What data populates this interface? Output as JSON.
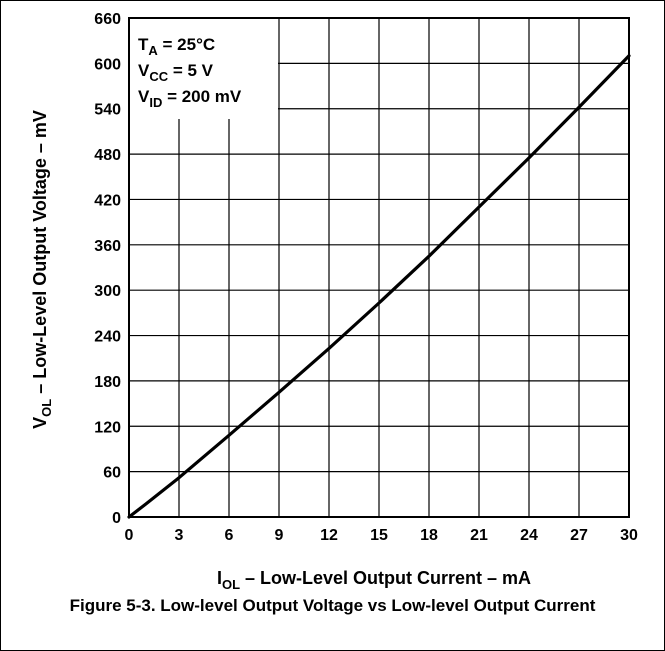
{
  "chart_data": {
    "type": "line",
    "xlabel": {
      "prefix": "I",
      "sub": "OL",
      "rest": " – Low-Level Output Current – mA"
    },
    "ylabel": {
      "prefix": "V",
      "sub": "OL",
      "rest": " – Low-Level Output Voltage – mV"
    },
    "xlim": [
      0,
      30
    ],
    "ylim": [
      0,
      660
    ],
    "x_ticks": [
      0,
      3,
      6,
      9,
      12,
      15,
      18,
      21,
      24,
      27,
      30
    ],
    "y_ticks": [
      0,
      60,
      120,
      180,
      240,
      300,
      360,
      420,
      480,
      540,
      600,
      660
    ],
    "grid": true,
    "conditions": [
      {
        "main": "T",
        "sub": "A",
        "rest": " = 25°C"
      },
      {
        "main": "V",
        "sub": "CC",
        "rest": " = 5 V"
      },
      {
        "main": "V",
        "sub": "ID",
        "rest": " = 200 mV"
      }
    ],
    "series": [
      {
        "x": [
          0,
          1,
          3,
          6,
          9,
          12,
          15,
          18,
          21,
          24,
          27,
          30
        ],
        "y": [
          0,
          17,
          52,
          108,
          165,
          223,
          283,
          345,
          410,
          475,
          542,
          610
        ]
      }
    ]
  },
  "caption": "Figure 5-3. Low-level Output Voltage vs Low-level Output Current"
}
